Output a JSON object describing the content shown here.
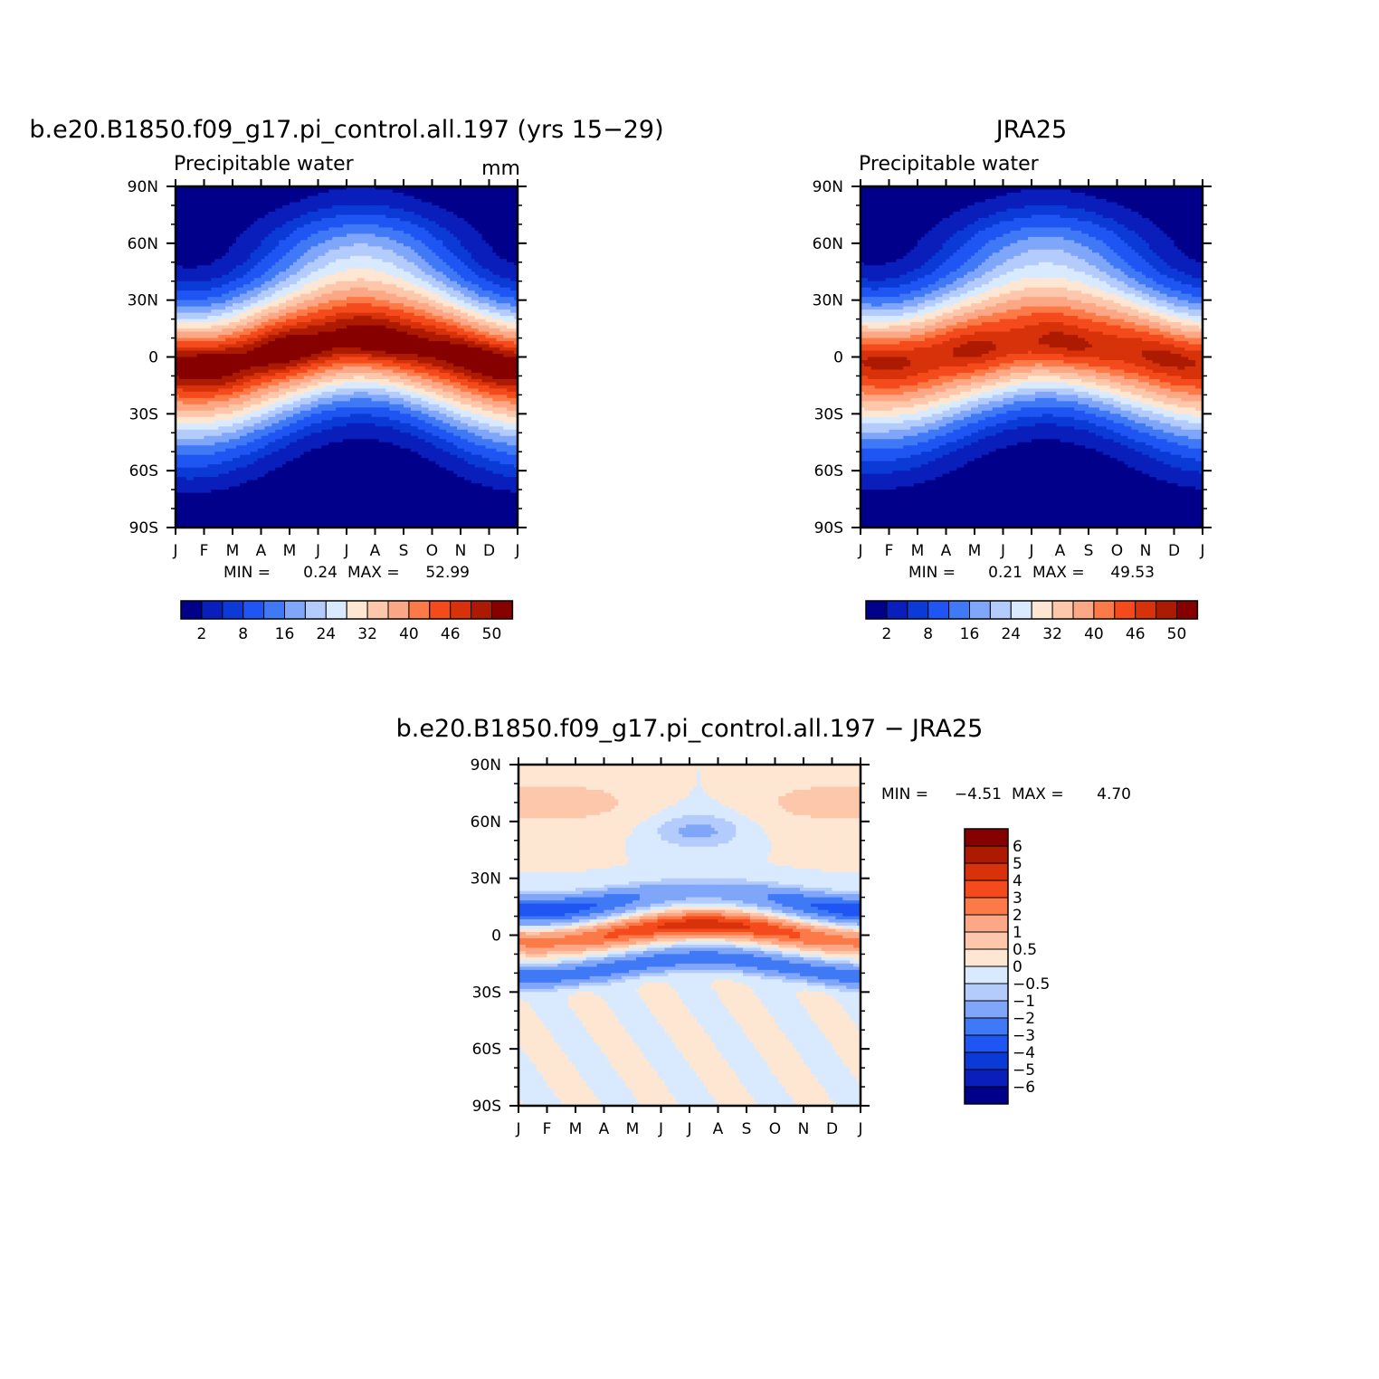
{
  "figure": {
    "panel1_title": "b.e20.B1850.f09_g17.pi_control.all.197 (yrs 15−29)",
    "panel2_title": "JRA25",
    "panel3_title": "b.e20.B1850.f09_g17.pi_control.all.197 − JRA25"
  },
  "chart_data": [
    {
      "type": "heatmap",
      "title": "b.e20.B1850.f09_g17.pi_control.all.197 (yrs 15−29)",
      "left_label": "Precipitable water",
      "right_label": "mm",
      "x": [
        "J",
        "F",
        "M",
        "A",
        "M",
        "J",
        "J",
        "A",
        "S",
        "O",
        "N",
        "D",
        "J"
      ],
      "y_ticks": [
        "90N",
        "60N",
        "30N",
        "0",
        "30S",
        "60S",
        "90S"
      ],
      "stats": {
        "min_label": "MIN =",
        "min": "0.24",
        "max_label": "MAX =",
        "max": "52.99"
      },
      "field": {
        "eq_max": 52.99,
        "itcz_lat_jan": -5,
        "itcz_lat_aug": 9,
        "pole_min": 0.24
      },
      "colorbar": {
        "levels": [
          0,
          2,
          5,
          8,
          12,
          16,
          20,
          24,
          28,
          32,
          36,
          40,
          43,
          46,
          48,
          50,
          60
        ],
        "labels": [
          "2",
          "8",
          "16",
          "24",
          "32",
          "40",
          "46",
          "50"
        ],
        "colors": [
          "#00008a",
          "#0a1ebb",
          "#0b3ad6",
          "#1f55f2",
          "#4079f6",
          "#80a6fa",
          "#b4ccfc",
          "#d9eafe",
          "#fee7d2",
          "#fdc7ab",
          "#fca785",
          "#fc7a47",
          "#f44a1c",
          "#d8320a",
          "#ad1a02",
          "#860000"
        ]
      }
    },
    {
      "type": "heatmap",
      "title": "JRA25",
      "left_label": "Precipitable water",
      "x": [
        "J",
        "F",
        "M",
        "A",
        "M",
        "J",
        "J",
        "A",
        "S",
        "O",
        "N",
        "D",
        "J"
      ],
      "y_ticks": [
        "90N",
        "60N",
        "30N",
        "0",
        "30S",
        "60S",
        "90S"
      ],
      "stats": {
        "min_label": "MIN =",
        "min": "0.21",
        "max_label": "MAX =",
        "max": "49.53"
      },
      "field": {
        "eq_max": 49.53,
        "itcz_lat_jan": -3,
        "itcz_lat_aug": 8,
        "pole_min": 0.21
      },
      "colorbar": {
        "levels": [
          0,
          2,
          5,
          8,
          12,
          16,
          20,
          24,
          28,
          32,
          36,
          40,
          43,
          46,
          48,
          50,
          60
        ],
        "labels": [
          "2",
          "8",
          "16",
          "24",
          "32",
          "40",
          "46",
          "50"
        ],
        "colors": [
          "#00008a",
          "#0a1ebb",
          "#0b3ad6",
          "#1f55f2",
          "#4079f6",
          "#80a6fa",
          "#b4ccfc",
          "#d9eafe",
          "#fee7d2",
          "#fdc7ab",
          "#fca785",
          "#fc7a47",
          "#f44a1c",
          "#d8320a",
          "#ad1a02",
          "#860000"
        ]
      }
    },
    {
      "type": "heatmap",
      "title": "b.e20.B1850.f09_g17.pi_control.all.197 − JRA25",
      "x": [
        "J",
        "F",
        "M",
        "A",
        "M",
        "J",
        "J",
        "A",
        "S",
        "O",
        "N",
        "D",
        "J"
      ],
      "y_ticks": [
        "90N",
        "60N",
        "30N",
        "0",
        "30S",
        "60S",
        "90S"
      ],
      "stats": {
        "min_label": "MIN =",
        "min": "−4.51",
        "max_label": "MAX =",
        "max": "4.70"
      },
      "field": {
        "min": -4.51,
        "max": 4.7
      },
      "colorbar": {
        "levels": [
          -99,
          -6,
          -5,
          -4,
          -3,
          -2,
          -1,
          -0.5,
          0,
          0.5,
          1,
          2,
          3,
          4,
          5,
          6,
          99
        ],
        "labels": [
          "6",
          "5",
          "4",
          "3",
          "2",
          "1",
          "0.5",
          "0",
          "−0.5",
          "−1",
          "−2",
          "−3",
          "−4",
          "−5",
          "−6"
        ],
        "colors": [
          "#00008a",
          "#0a1ebb",
          "#0b3ad6",
          "#1f55f2",
          "#4079f6",
          "#80a6fa",
          "#b4ccfc",
          "#d9eafe",
          "#fee7d2",
          "#fdc7ab",
          "#fca785",
          "#fc7a47",
          "#f44a1c",
          "#d8320a",
          "#ad1a02",
          "#860000"
        ]
      }
    }
  ]
}
